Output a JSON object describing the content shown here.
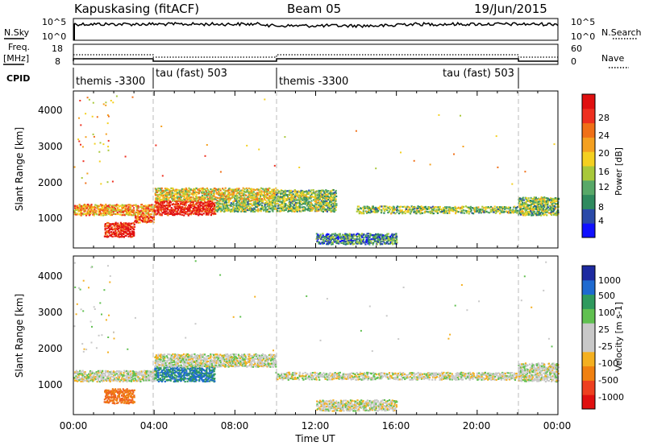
{
  "header": {
    "station": "Kapuskasing (fitACF)",
    "beam": "Beam 05",
    "date": "19/Jun/2015"
  },
  "noise_panel": {
    "left_label": "N.Sky",
    "right_label": "N.Search",
    "left_ticks": [
      "10^5",
      "10^0"
    ],
    "right_ticks": [
      "10^5",
      "10^0"
    ]
  },
  "freq_panel": {
    "left_label_1": "Freq.",
    "left_label_2": "[MHz]",
    "right_label": "Nave",
    "left_ticks": [
      "18",
      "8"
    ],
    "right_ticks": [
      "60",
      "0"
    ]
  },
  "cpid_panel": {
    "label": "CPID",
    "segments": [
      {
        "start_hour": 0,
        "end_hour": 4,
        "name": "themis -3300"
      },
      {
        "start_hour": 4,
        "end_hour": 10,
        "name": "tau (fast) 503"
      },
      {
        "start_hour": 10,
        "end_hour": 22,
        "name": "themis -3300"
      },
      {
        "start_hour": 10,
        "end_hour": 22,
        "name": "tau (fast) 503"
      }
    ]
  },
  "x_axis": {
    "label": "Time UT",
    "ticks": [
      "00:00",
      "04:00",
      "08:00",
      "12:00",
      "16:00",
      "20:00",
      "00:00"
    ]
  },
  "power_panel": {
    "ylabel": "Slant Range [km]",
    "yticks": [
      "1000",
      "2000",
      "3000",
      "4000"
    ],
    "colorbar_label": "Power [dB]",
    "colorbar_ticks": [
      "4",
      "8",
      "12",
      "16",
      "20",
      "24",
      "28"
    ],
    "colorbar_colors": [
      "#1010ff",
      "#2a4aa8",
      "#2f8a5e",
      "#58a868",
      "#a8c83a",
      "#f4d020",
      "#f4a020",
      "#f07018",
      "#ee3020",
      "#e01010"
    ]
  },
  "velocity_panel": {
    "ylabel": "Slant Range [km]",
    "yticks": [
      "1000",
      "2000",
      "3000",
      "4000"
    ],
    "colorbar_label": "Velocity [m s-1]",
    "colorbar_ticks": [
      "1000",
      "500",
      "100",
      "25",
      "-25",
      "-100",
      "-500",
      "-1000"
    ],
    "colorbar_colors": [
      "#1d2aa0",
      "#1e6ad0",
      "#2f9a5e",
      "#60c050",
      "#c8c8c8",
      "#c8c8c8",
      "#f4b020",
      "#f08010",
      "#ee4020",
      "#e01010"
    ]
  },
  "chart_data": [
    {
      "type": "heatmap",
      "title": "Power",
      "xlabel": "Time UT",
      "ylabel": "Slant Range [km]",
      "xlim_hours": [
        0,
        24
      ],
      "ylim": [
        180,
        4500
      ],
      "colorbar_range": [
        0,
        30
      ],
      "colorbar_unit": "dB",
      "regions": [
        {
          "t0": 0.0,
          "t1": 4.0,
          "r0": 1100,
          "r1": 1400,
          "value": 20
        },
        {
          "t0": 1.5,
          "t1": 3.0,
          "r0": 500,
          "r1": 900,
          "value": 28
        },
        {
          "t0": 3.0,
          "t1": 4.0,
          "r0": 900,
          "r1": 1100,
          "value": 24
        },
        {
          "t0": 4.0,
          "t1": 7.0,
          "r0": 1100,
          "r1": 1500,
          "value": 28
        },
        {
          "t0": 4.0,
          "t1": 10.0,
          "r0": 1500,
          "r1": 1850,
          "value": 16
        },
        {
          "t0": 7.0,
          "t1": 10.0,
          "r0": 1200,
          "r1": 1500,
          "value": 12
        },
        {
          "t0": 10.0,
          "t1": 13.0,
          "r0": 1200,
          "r1": 1800,
          "value": 12
        },
        {
          "t0": 12.0,
          "t1": 16.0,
          "r0": 300,
          "r1": 600,
          "value": 8
        },
        {
          "t0": 14.0,
          "t1": 22.0,
          "r0": 1150,
          "r1": 1350,
          "value": 12
        },
        {
          "t0": 22.0,
          "t1": 24.0,
          "r0": 1100,
          "r1": 1600,
          "value": 12
        }
      ]
    },
    {
      "type": "heatmap",
      "title": "Velocity",
      "xlabel": "Time UT",
      "ylabel": "Slant Range [km]",
      "xlim_hours": [
        0,
        24
      ],
      "ylim": [
        180,
        4500
      ],
      "colorbar_range": [
        -1000,
        1000
      ],
      "colorbar_unit": "m s-1",
      "regions": [
        {
          "t0": 0.0,
          "t1": 4.0,
          "r0": 1100,
          "r1": 1400,
          "value": 0
        },
        {
          "t0": 1.5,
          "t1": 3.0,
          "r0": 500,
          "r1": 900,
          "value": -300
        },
        {
          "t0": 4.0,
          "t1": 7.0,
          "r0": 1100,
          "r1": 1500,
          "value": 100
        },
        {
          "t0": 4.0,
          "t1": 10.0,
          "r0": 1500,
          "r1": 1850,
          "value": 0
        },
        {
          "t0": 10.0,
          "t1": 22.0,
          "r0": 1150,
          "r1": 1350,
          "value": 0
        },
        {
          "t0": 12.0,
          "t1": 16.0,
          "r0": 300,
          "r1": 600,
          "value": 0
        },
        {
          "t0": 22.0,
          "t1": 24.0,
          "r0": 1100,
          "r1": 1600,
          "value": 0
        }
      ]
    }
  ]
}
